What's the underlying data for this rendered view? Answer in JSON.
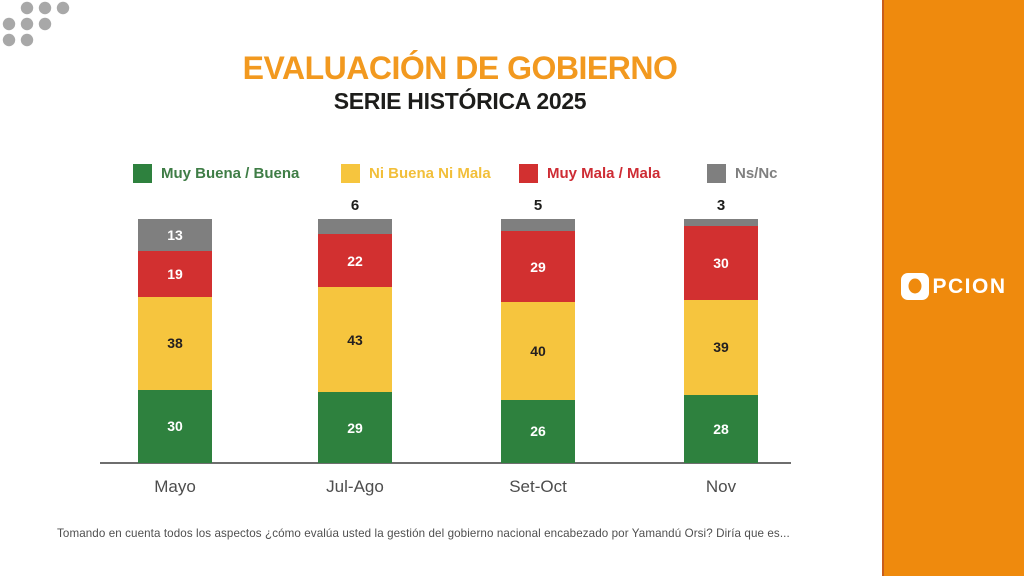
{
  "header": {
    "title": "EVALUACIÓN DE GOBIERNO",
    "subtitle": "SERIE HISTÓRICA 2025",
    "title_color": "#F2991F",
    "subtitle_color": "#1D1D1B"
  },
  "legend": [
    {
      "label": "Muy Buena / Buena",
      "swatch_color": "#2E813E",
      "text_color": "#3F7D46"
    },
    {
      "label": "Ni Buena Ni Mala",
      "swatch_color": "#F6C53E",
      "text_color": "#F2BF3A"
    },
    {
      "label": "Muy Mala / Mala",
      "swatch_color": "#D23030",
      "text_color": "#CE2C34"
    },
    {
      "label": "Ns/Nc",
      "swatch_color": "#7F7F7F",
      "text_color": "#7F7F7F"
    }
  ],
  "chart_data": {
    "type": "bar",
    "stacked": true,
    "title": "EVALUACIÓN DE GOBIERNO — SERIE HISTÓRICA 2025",
    "categories": [
      "Mayo",
      "Jul-Ago",
      "Set-Oct",
      "Nov"
    ],
    "series": [
      {
        "name": "Muy Buena / Buena",
        "color": "#2E813E",
        "label_color": "#ffffff",
        "values": [
          30,
          29,
          26,
          28
        ]
      },
      {
        "name": "Ni Buena Ni Mala",
        "color": "#F6C53E",
        "label_color": "#231f20",
        "values": [
          38,
          43,
          40,
          39
        ]
      },
      {
        "name": "Muy Mala / Mala",
        "color": "#D23030",
        "label_color": "#ffffff",
        "values": [
          19,
          22,
          29,
          30
        ]
      },
      {
        "name": "Ns/Nc",
        "color": "#7F7F7F",
        "label_color": "#ffffff",
        "values": [
          13,
          6,
          5,
          3
        ]
      }
    ],
    "ylim": [
      0,
      100
    ],
    "grid": false,
    "legend_position": "top",
    "small_value_labels_above": true
  },
  "footer": {
    "question": "Tomando en cuenta todos los aspectos ¿cómo evalúa usted la gestión del gobierno nacional encabezado por Yamandú Orsi? Diría que es..."
  },
  "sidebar": {
    "background_color": "#EF8A0D",
    "logo_full": "OPCION",
    "logo_rest": "PCION"
  },
  "decor": {
    "dots_color": "#A8A8A8"
  }
}
